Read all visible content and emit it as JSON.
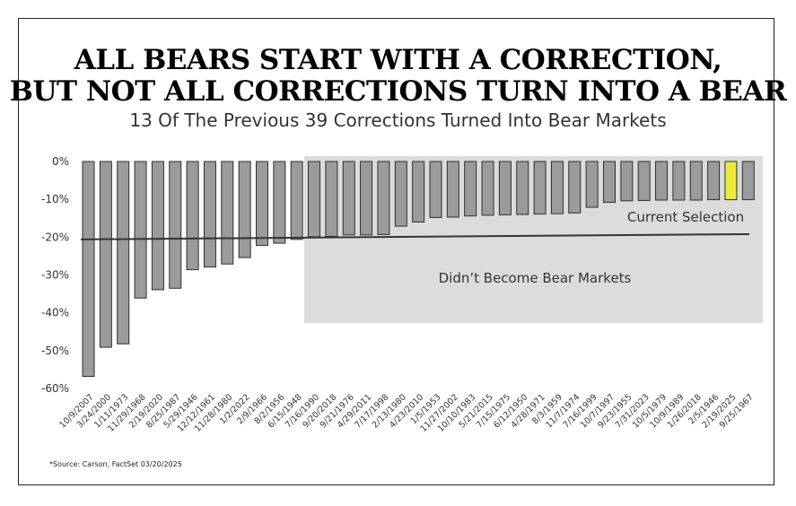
{
  "title_line1": "ALL BEARS START WITH A CORRECTION,",
  "title_line2": "BUT NOT ALL CORRECTIONS TURN INTO A BEAR",
  "subtitle": "13 Of The Previous 39 Corrections Turned Into Bear Markets",
  "source": "*Source: Carson, FactSet 03/20/2025",
  "annotations": {
    "current_selection": "Current Selection",
    "didnt_become": "Didn’t Become Bear Markets"
  },
  "colors": {
    "bar": "#9b9b9b",
    "bar_stroke": "#2e2e2e",
    "highlight_bar": "#ecea3c",
    "shaded_region": "#dcdcdc",
    "threshold_line": "#333333"
  },
  "chart_data": {
    "type": "bar",
    "categories": [
      "10/9/2007",
      "3/24/2000",
      "1/11/1973",
      "11/29/1968",
      "2/19/2020",
      "8/25/1987",
      "5/29/1946",
      "12/12/1961",
      "11/28/1980",
      "1/2/2022",
      "2/9/1966",
      "8/2/1956",
      "6/15/1948",
      "7/16/1990",
      "9/20/2018",
      "9/21/1976",
      "4/29/2011",
      "7/17/1998",
      "2/13/1980",
      "4/23/2010",
      "1/5/1953",
      "11/27/2002",
      "10/10/1983",
      "5/21/2015",
      "7/15/1975",
      "6/12/1950",
      "4/28/1971",
      "8/3/1959",
      "11/7/1974",
      "7/16/1999",
      "10/7/1997",
      "9/23/1955",
      "7/31/2023",
      "10/5/1979",
      "10/9/1989",
      "1/26/2018",
      "2/5/1946",
      "2/19/2025",
      "9/25/1967"
    ],
    "values": [
      -56.8,
      -49.1,
      -48.2,
      -36.1,
      -33.9,
      -33.5,
      -28.6,
      -27.9,
      -27.1,
      -25.4,
      -22.2,
      -21.6,
      -20.6,
      -19.9,
      -19.8,
      -19.4,
      -19.4,
      -19.3,
      -17.1,
      -16.0,
      -14.8,
      -14.7,
      -14.4,
      -14.2,
      -14.1,
      -14.0,
      -13.9,
      -13.8,
      -13.6,
      -12.1,
      -10.8,
      -10.4,
      -10.3,
      -10.2,
      -10.2,
      -10.2,
      -10.1,
      -10.1,
      -10.1
    ],
    "highlight_index": 37,
    "y_ticks": [
      0,
      -10,
      -20,
      -30,
      -40,
      -50,
      -60
    ],
    "ylim": [
      -60,
      0
    ],
    "y_tick_suffix": "%"
  }
}
